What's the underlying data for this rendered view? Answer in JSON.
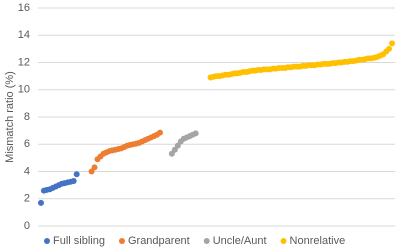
{
  "chart_data": {
    "type": "scatter",
    "ylabel": "Mismatch ratio (%)",
    "xlim": [
      0,
      120
    ],
    "ylim": [
      0,
      16
    ],
    "yticks": [
      0,
      2,
      4,
      6,
      8,
      10,
      12,
      14,
      16
    ],
    "grid": true,
    "legend": "bottom",
    "series": [
      {
        "name": "Full sibling",
        "color": "#4472c4",
        "x": [
          1,
          2,
          3,
          4,
          5,
          6,
          7,
          8,
          9,
          10,
          11,
          12,
          13
        ],
        "values": [
          1.7,
          2.6,
          2.65,
          2.7,
          2.8,
          2.9,
          3.0,
          3.1,
          3.15,
          3.2,
          3.25,
          3.3,
          3.8
        ]
      },
      {
        "name": "Grandparent",
        "color": "#ed7d31",
        "x": [
          18,
          19,
          20,
          21,
          22,
          23,
          24,
          25,
          26,
          27,
          28,
          29,
          30,
          31,
          32,
          33,
          34,
          35,
          36,
          37,
          38,
          39,
          40,
          41
        ],
        "values": [
          4.0,
          4.3,
          4.9,
          5.1,
          5.3,
          5.4,
          5.5,
          5.55,
          5.6,
          5.65,
          5.7,
          5.8,
          5.9,
          5.95,
          6.0,
          6.05,
          6.1,
          6.2,
          6.3,
          6.4,
          6.5,
          6.6,
          6.7,
          6.85
        ]
      },
      {
        "name": "Uncle/Aunt",
        "color": "#a5a5a5",
        "x": [
          45,
          46,
          47,
          48,
          49,
          50,
          51,
          52,
          53
        ],
        "values": [
          5.3,
          5.6,
          5.9,
          6.2,
          6.4,
          6.5,
          6.6,
          6.7,
          6.8
        ]
      },
      {
        "name": "Nonrelative",
        "color": "#ffc000",
        "x": [
          58,
          59,
          60,
          61,
          62,
          63,
          64,
          65,
          66,
          67,
          68,
          69,
          70,
          71,
          72,
          73,
          74,
          75,
          76,
          77,
          78,
          79,
          80,
          81,
          82,
          83,
          84,
          85,
          86,
          87,
          88,
          89,
          90,
          91,
          92,
          93,
          94,
          95,
          96,
          97,
          98,
          99,
          100,
          101,
          102,
          103,
          104,
          105,
          106,
          107,
          108,
          109,
          110,
          111,
          112,
          113,
          114,
          115,
          116,
          117,
          118,
          119
        ],
        "values": [
          10.9,
          10.95,
          11.0,
          11.0,
          11.05,
          11.1,
          11.1,
          11.15,
          11.2,
          11.2,
          11.25,
          11.3,
          11.3,
          11.35,
          11.4,
          11.4,
          11.45,
          11.45,
          11.5,
          11.5,
          11.5,
          11.55,
          11.55,
          11.6,
          11.6,
          11.6,
          11.65,
          11.65,
          11.7,
          11.7,
          11.7,
          11.75,
          11.75,
          11.8,
          11.8,
          11.8,
          11.85,
          11.85,
          11.9,
          11.9,
          11.9,
          11.95,
          11.95,
          12.0,
          12.0,
          12.05,
          12.05,
          12.1,
          12.1,
          12.15,
          12.2,
          12.2,
          12.25,
          12.3,
          12.3,
          12.35,
          12.4,
          12.5,
          12.6,
          12.8,
          13.0,
          13.4
        ]
      }
    ]
  }
}
